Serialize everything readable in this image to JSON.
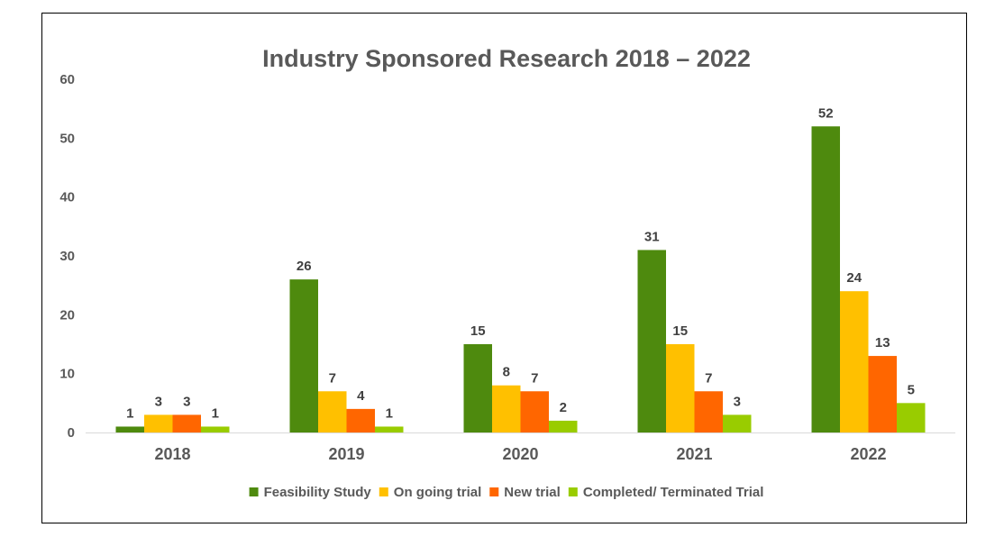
{
  "chart_data": {
    "type": "bar",
    "title": "Industry Sponsored Research 2018 –  2022",
    "categories": [
      "2018",
      "2019",
      "2020",
      "2021",
      "2022"
    ],
    "series": [
      {
        "name": "Feasibility Study",
        "color": "#4E8A0E",
        "values": [
          1,
          26,
          15,
          31,
          52
        ]
      },
      {
        "name": "On going trial",
        "color": "#FFC000",
        "values": [
          3,
          7,
          8,
          15,
          24
        ]
      },
      {
        "name": "New trial",
        "color": "#FF6600",
        "values": [
          3,
          4,
          7,
          7,
          13
        ]
      },
      {
        "name": "Completed/ Terminated Trial",
        "color": "#99CC00",
        "values": [
          1,
          1,
          2,
          3,
          5
        ]
      }
    ],
    "ylim": [
      0,
      60
    ],
    "yticks": [
      0,
      10,
      20,
      30,
      40,
      50,
      60
    ],
    "grid": false,
    "legend_position": "bottom",
    "data_labels": true
  }
}
